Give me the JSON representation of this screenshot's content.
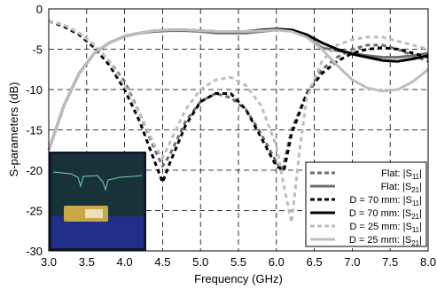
{
  "chart_data": {
    "type": "line",
    "xlabel": "Frequency (GHz)",
    "ylabel": "S-parameters (dB)",
    "xlim": [
      3.0,
      8.0
    ],
    "ylim": [
      -30,
      0
    ],
    "xticks": [
      "3.0",
      "3.5",
      "4.0",
      "4.5",
      "5.0",
      "5.5",
      "6.0",
      "6.5",
      "7.0",
      "7.5",
      "8.0"
    ],
    "yticks": [
      "0",
      "-5",
      "-10",
      "-15",
      "-20",
      "-25",
      "-30"
    ],
    "grid": true,
    "legend_position": "bottom-right",
    "inset_photo": true,
    "series": [
      {
        "name": "Flat: |S11|",
        "legend_prefix": "Flat: |S",
        "legend_sub": "11",
        "legend_suffix": "|",
        "color": "#6e6e6e",
        "dash": "dashed",
        "x": [
          3.0,
          3.2,
          3.4,
          3.6,
          3.8,
          4.0,
          4.2,
          4.4,
          4.5,
          4.6,
          4.8,
          5.0,
          5.2,
          5.4,
          5.6,
          5.8,
          6.0,
          6.08,
          6.2,
          6.4,
          6.6,
          6.8,
          7.0,
          7.2,
          7.4,
          7.6,
          7.8,
          8.0
        ],
        "y": [
          -1.5,
          -2.0,
          -3.0,
          -4.5,
          -6.5,
          -9.0,
          -13.0,
          -17.5,
          -19.5,
          -18.0,
          -14.0,
          -11.5,
          -10.5,
          -11.0,
          -12.5,
          -15.5,
          -19.0,
          -20.0,
          -15.0,
          -10.5,
          -7.5,
          -6.0,
          -5.0,
          -4.5,
          -4.5,
          -5.0,
          -5.8,
          -6.5
        ]
      },
      {
        "name": "Flat: |S21|",
        "legend_prefix": "Flat: |S",
        "legend_sub": "21",
        "legend_suffix": "|",
        "color": "#6e6e6e",
        "dash": "solid",
        "x": [
          3.0,
          3.2,
          3.4,
          3.6,
          3.8,
          4.0,
          4.2,
          4.4,
          4.6,
          4.8,
          5.0,
          5.2,
          5.4,
          5.6,
          5.8,
          6.0,
          6.2,
          6.4,
          6.6,
          6.8,
          7.0,
          7.2,
          7.4,
          7.6,
          7.8,
          8.0
        ],
        "y": [
          -17.5,
          -12.0,
          -8.0,
          -5.5,
          -4.2,
          -3.4,
          -3.0,
          -2.8,
          -2.7,
          -2.7,
          -2.8,
          -3.0,
          -3.0,
          -3.0,
          -2.8,
          -2.6,
          -2.7,
          -3.5,
          -4.8,
          -5.2,
          -5.5,
          -5.8,
          -6.0,
          -6.0,
          -5.8,
          -5.5
        ]
      },
      {
        "name": "D = 70 mm: |S11|",
        "legend_prefix": "D = 70 mm: |S",
        "legend_sub": "11",
        "legend_suffix": "|",
        "color": "#000000",
        "dash": "dashed",
        "x": [
          3.0,
          3.2,
          3.4,
          3.6,
          3.8,
          4.0,
          4.2,
          4.4,
          4.5,
          4.6,
          4.8,
          5.0,
          5.2,
          5.4,
          5.6,
          5.8,
          6.0,
          6.1,
          6.2,
          6.4,
          6.6,
          6.8,
          7.0,
          7.2,
          7.4,
          7.6,
          7.8,
          8.0
        ],
        "y": [
          -1.5,
          -2.2,
          -3.2,
          -4.8,
          -7.0,
          -10.0,
          -14.0,
          -19.0,
          -21.5,
          -19.0,
          -14.5,
          -11.5,
          -10.5,
          -10.5,
          -12.5,
          -16.0,
          -19.5,
          -20.0,
          -15.5,
          -10.5,
          -8.0,
          -6.5,
          -5.5,
          -5.0,
          -4.8,
          -5.0,
          -5.5,
          -6.0
        ]
      },
      {
        "name": "D = 70 mm: |S21|",
        "legend_prefix": "D = 70 mm: |S",
        "legend_sub": "21",
        "legend_suffix": "|",
        "color": "#000000",
        "dash": "solid",
        "x": [
          3.0,
          3.2,
          3.4,
          3.6,
          3.8,
          4.0,
          4.2,
          4.4,
          4.6,
          4.8,
          5.0,
          5.2,
          5.4,
          5.6,
          5.8,
          6.0,
          6.2,
          6.4,
          6.6,
          6.8,
          7.0,
          7.2,
          7.4,
          7.6,
          7.8,
          8.0
        ],
        "y": [
          -17.5,
          -12.0,
          -8.0,
          -5.5,
          -4.2,
          -3.4,
          -3.0,
          -2.7,
          -2.6,
          -2.6,
          -2.7,
          -2.8,
          -2.8,
          -2.8,
          -2.6,
          -2.5,
          -2.6,
          -3.2,
          -4.2,
          -5.0,
          -5.6,
          -6.0,
          -6.4,
          -6.5,
          -6.2,
          -5.8
        ]
      },
      {
        "name": "D = 25 mm: |S11|",
        "legend_prefix": "D = 25 mm: |S",
        "legend_sub": "11",
        "legend_suffix": "|",
        "color": "#bdbdbd",
        "dash": "dashed",
        "x": [
          3.0,
          3.2,
          3.4,
          3.6,
          3.8,
          4.0,
          4.2,
          4.4,
          4.5,
          4.6,
          4.8,
          5.0,
          5.2,
          5.4,
          5.6,
          5.8,
          6.0,
          6.1,
          6.2,
          6.3,
          6.4,
          6.6,
          6.8,
          7.0,
          7.2,
          7.4,
          7.6,
          7.8,
          8.0
        ],
        "y": [
          -1.5,
          -2.0,
          -3.0,
          -4.5,
          -6.5,
          -9.5,
          -13.0,
          -17.0,
          -18.5,
          -16.5,
          -12.5,
          -10.0,
          -8.8,
          -8.5,
          -9.5,
          -12.0,
          -17.0,
          -22.0,
          -26.5,
          -18.0,
          -11.0,
          -6.5,
          -4.5,
          -3.8,
          -3.5,
          -3.5,
          -4.0,
          -4.5,
          -5.0
        ]
      },
      {
        "name": "D = 25 mm: |S21|",
        "legend_prefix": "D = 25 mm: |S",
        "legend_sub": "21",
        "legend_suffix": "|",
        "color": "#bdbdbd",
        "dash": "solid",
        "x": [
          3.0,
          3.2,
          3.4,
          3.6,
          3.8,
          4.0,
          4.2,
          4.4,
          4.6,
          4.8,
          5.0,
          5.2,
          5.4,
          5.6,
          5.8,
          6.0,
          6.2,
          6.4,
          6.6,
          6.8,
          7.0,
          7.2,
          7.4,
          7.6,
          7.8,
          8.0
        ],
        "y": [
          -17.5,
          -12.0,
          -8.0,
          -5.5,
          -4.2,
          -3.4,
          -3.0,
          -2.7,
          -2.6,
          -2.6,
          -2.7,
          -2.8,
          -2.8,
          -2.8,
          -2.7,
          -2.6,
          -2.8,
          -3.5,
          -5.0,
          -7.0,
          -8.8,
          -9.8,
          -10.2,
          -10.0,
          -9.0,
          -7.5
        ]
      }
    ]
  }
}
